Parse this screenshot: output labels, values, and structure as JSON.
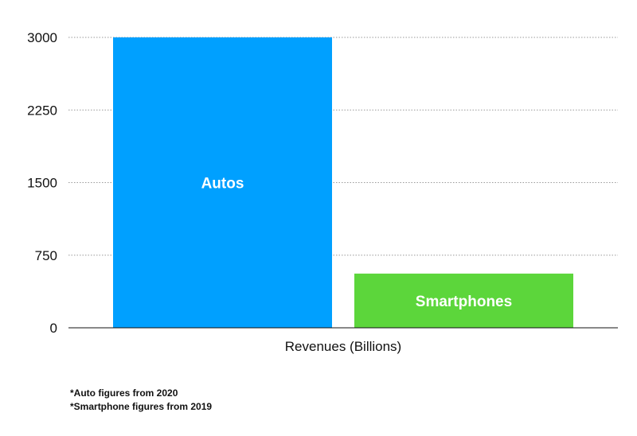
{
  "chart_data": {
    "type": "bar",
    "xlabel": "Revenues (Billions)",
    "ylabel": "",
    "ylim": [
      0,
      3000
    ],
    "yticks": [
      0,
      750,
      1500,
      2250,
      3000
    ],
    "grid": true,
    "categories": [
      "Autos",
      "Smartphones"
    ],
    "values": [
      3000,
      560
    ],
    "colors": [
      "#00a0ff",
      "#5cd63b"
    ],
    "bar_labels_inside": true
  },
  "footnotes": [
    "*Auto figures from 2020",
    "*Smartphone figures from 2019"
  ]
}
